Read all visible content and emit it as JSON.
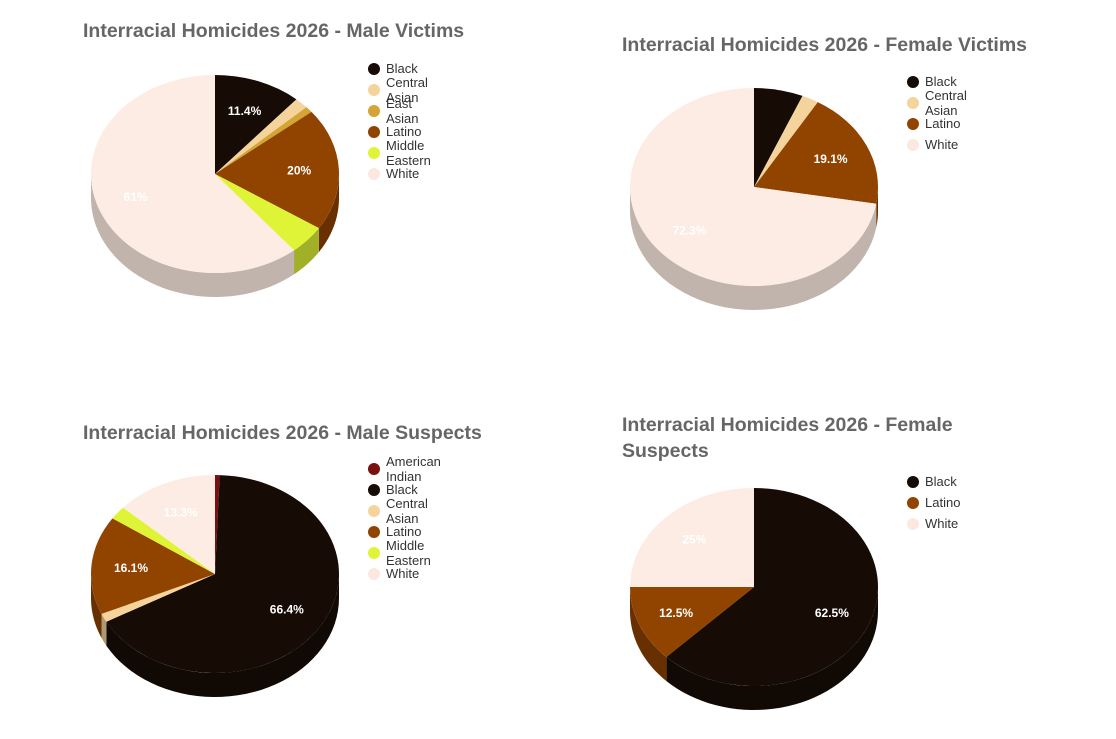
{
  "colors": {
    "American Indian": "#7b0f0f",
    "Black": "#170c05",
    "Central Asian": "#f5d49b",
    "East Asian": "#d4a437",
    "Latino": "#914300",
    "Middle Eastern": "#dff436",
    "White": "#fcece4"
  },
  "chart_data": [
    {
      "type": "pie",
      "title": "Interracial Homicides 2026 - Male Victims",
      "slices": [
        {
          "name": "Black",
          "value": 11.4,
          "label": "11.4%"
        },
        {
          "name": "Central Asian",
          "value": 1.8,
          "label": ""
        },
        {
          "name": "East Asian",
          "value": 1.0,
          "label": ""
        },
        {
          "name": "Latino",
          "value": 20,
          "label": "20%"
        },
        {
          "name": "Middle Eastern",
          "value": 4.8,
          "label": ""
        },
        {
          "name": "White",
          "value": 61,
          "label": "61%"
        }
      ],
      "legend": [
        "Black",
        "Central Asian",
        "East Asian",
        "Latino",
        "Middle Eastern",
        "White"
      ],
      "legend_position": "right"
    },
    {
      "type": "pie",
      "title": "Interracial Homicides 2026 - Female Victims",
      "slices": [
        {
          "name": "Black",
          "value": 6.4,
          "label": ""
        },
        {
          "name": "Central Asian",
          "value": 2.2,
          "label": ""
        },
        {
          "name": "Latino",
          "value": 19.1,
          "label": "19.1%"
        },
        {
          "name": "White",
          "value": 72.3,
          "label": "72.3%"
        }
      ],
      "legend": [
        "Black",
        "Central Asian",
        "Latino",
        "White"
      ],
      "legend_position": "right"
    },
    {
      "type": "pie",
      "title": "Interracial Homicides 2026 - Male Suspects",
      "slices": [
        {
          "name": "American Indian",
          "value": 0.6,
          "label": ""
        },
        {
          "name": "Black",
          "value": 66.4,
          "label": "66.4%"
        },
        {
          "name": "Central Asian",
          "value": 1.4,
          "label": ""
        },
        {
          "name": "Latino",
          "value": 16.1,
          "label": "16.1%"
        },
        {
          "name": "Middle Eastern",
          "value": 2.2,
          "label": ""
        },
        {
          "name": "White",
          "value": 13.3,
          "label": "13.3%"
        }
      ],
      "legend": [
        "American Indian",
        "Black",
        "Central Asian",
        "Latino",
        "Middle Eastern",
        "White"
      ],
      "legend_position": "right"
    },
    {
      "type": "pie",
      "title": "Interracial Homicides 2026 - Female Suspects",
      "slices": [
        {
          "name": "Black",
          "value": 62.5,
          "label": "62.5%"
        },
        {
          "name": "Latino",
          "value": 12.5,
          "label": "12.5%"
        },
        {
          "name": "White",
          "value": 25,
          "label": "25%"
        }
      ],
      "legend": [
        "Black",
        "Latino",
        "White"
      ],
      "legend_position": "right"
    }
  ]
}
